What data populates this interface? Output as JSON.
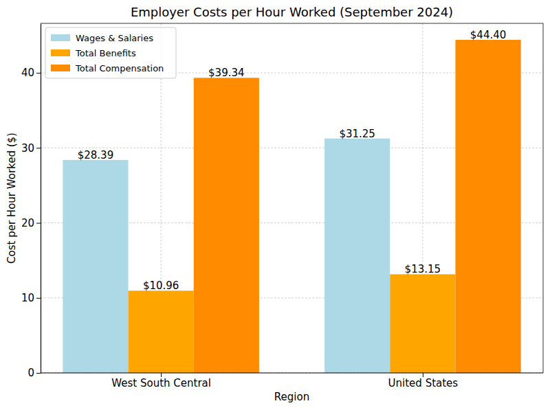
{
  "chart_data": {
    "type": "bar",
    "title": "Employer Costs per Hour Worked (September 2024)",
    "x_label": "Region",
    "y_label": "Cost per Hour Worked ($)",
    "categories": [
      "West South Central",
      "United States"
    ],
    "series": [
      {
        "name": "Wages & Salaries",
        "color": "#add8e6",
        "values": [
          28.39,
          31.25
        ],
        "value_labels": [
          "$28.39",
          "$31.25"
        ]
      },
      {
        "name": "Total Benefits",
        "color": "#ffa500",
        "values": [
          10.96,
          13.15
        ],
        "value_labels": [
          "$10.96",
          "$13.15"
        ]
      },
      {
        "name": "Total Compensation",
        "color": "#ff8c00",
        "values": [
          39.34,
          44.4
        ],
        "value_labels": [
          "$39.34",
          "$44.40"
        ]
      }
    ],
    "ylim": [
      0,
      46.6
    ],
    "yticks": [
      0,
      10,
      20,
      30,
      40
    ],
    "grid": true,
    "legend": "upper left",
    "data_labels": true
  }
}
